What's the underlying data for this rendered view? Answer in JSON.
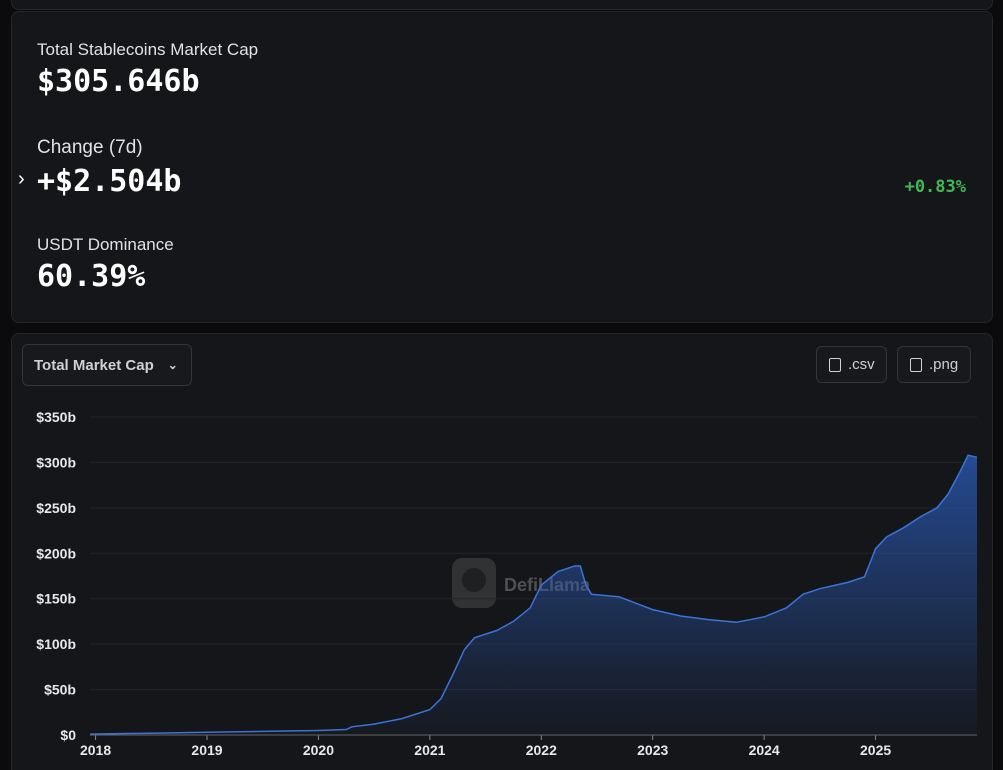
{
  "stats": {
    "market_cap_label": "Total Stablecoins Market Cap",
    "market_cap_value": "$305.646b",
    "change_label": "Change (7d)",
    "change_value": "+$2.504b",
    "change_percent": "+0.83%",
    "dominance_label": "USDT Dominance",
    "dominance_value": "60.39%"
  },
  "controls": {
    "dropdown": "Total Market Cap",
    "csv": ".csv",
    "png": ".png"
  },
  "chart_data": {
    "type": "area",
    "watermark": "DefiLlama",
    "color": "#3b74d9",
    "grid": true,
    "x": [
      2017.95,
      2018.5,
      2019.0,
      2019.5,
      2020.0,
      2020.25,
      2020.3,
      2020.5,
      2020.75,
      2021.0,
      2021.1,
      2021.2,
      2021.31,
      2021.4,
      2021.6,
      2021.75,
      2021.9,
      2022.0,
      2022.15,
      2022.3,
      2022.35,
      2022.4,
      2022.45,
      2022.7,
      2023.0,
      2023.25,
      2023.5,
      2023.75,
      2024.0,
      2024.2,
      2024.35,
      2024.5,
      2024.75,
      2024.9,
      2025.0,
      2025.1,
      2025.25,
      2025.4,
      2025.55,
      2025.65,
      2025.75,
      2025.83,
      2025.91
    ],
    "values": [
      1,
      2,
      3,
      4,
      5,
      6,
      9,
      12,
      18,
      28,
      40,
      65,
      94,
      107,
      115,
      125,
      140,
      165,
      180,
      186,
      186,
      165,
      155,
      152,
      138,
      131,
      127,
      124,
      130,
      140,
      155,
      161,
      168,
      174,
      205,
      218,
      228,
      240,
      250,
      265,
      288,
      308,
      305.646
    ],
    "xlim": [
      2017.95,
      2025.91
    ],
    "ylim": [
      0,
      350
    ],
    "xticks": [
      2018,
      2019,
      2020,
      2021,
      2022,
      2023,
      2024,
      2025
    ],
    "yticks": [
      {
        "value": 0,
        "label": "$0"
      },
      {
        "value": 50,
        "label": "$50b"
      },
      {
        "value": 100,
        "label": "$100b"
      },
      {
        "value": 150,
        "label": "$150b"
      },
      {
        "value": 200,
        "label": "$200b"
      },
      {
        "value": 250,
        "label": "$250b"
      },
      {
        "value": 300,
        "label": "$300b"
      },
      {
        "value": 350,
        "label": "$350b"
      }
    ]
  }
}
